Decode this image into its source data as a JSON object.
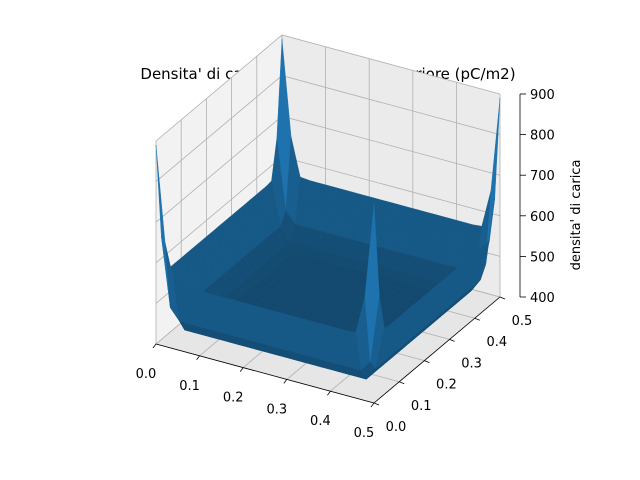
{
  "chart_data": {
    "type": "surface3d",
    "title": "Densita' di carica sull'armatura superiore (pC/m2)",
    "xlabel": "",
    "ylabel": "",
    "zlabel": "densita' di carica",
    "x_ticks": [
      "0.0",
      "0.1",
      "0.2",
      "0.3",
      "0.4",
      "0.5"
    ],
    "y_ticks": [
      "0.0",
      "0.1",
      "0.2",
      "0.3",
      "0.4",
      "0.5"
    ],
    "z_ticks": [
      "400",
      "500",
      "600",
      "700",
      "800",
      "900"
    ],
    "xlim": [
      0,
      0.5
    ],
    "ylim": [
      0,
      0.5
    ],
    "zlim": [
      400,
      900
    ],
    "grid": true,
    "surface_color": "#1f77b4",
    "surface": {
      "description_points": [
        {
          "x": 0.0,
          "y": 0.0,
          "z": 880
        },
        {
          "x": 0.5,
          "y": 0.0,
          "z": 880
        },
        {
          "x": 0.0,
          "y": 0.5,
          "z": 880
        },
        {
          "x": 0.5,
          "y": 0.5,
          "z": 880
        },
        {
          "x": 0.25,
          "y": 0.0,
          "z": 560
        },
        {
          "x": 0.0,
          "y": 0.25,
          "z": 560
        },
        {
          "x": 0.5,
          "y": 0.25,
          "z": 560
        },
        {
          "x": 0.25,
          "y": 0.5,
          "z": 560
        },
        {
          "x": 0.25,
          "y": 0.25,
          "z": 410
        }
      ]
    }
  }
}
